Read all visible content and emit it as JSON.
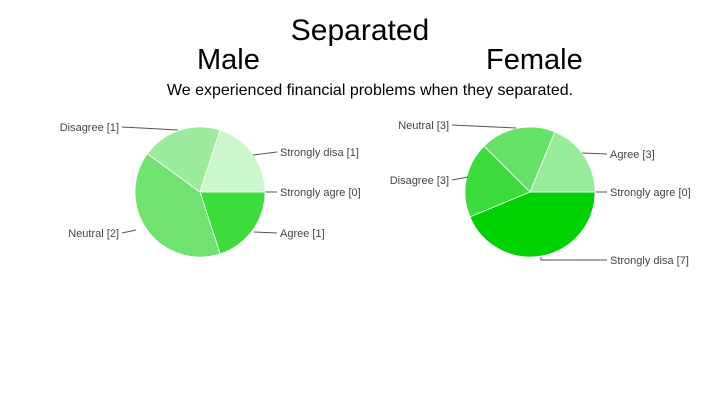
{
  "slide": {
    "title": "Separated",
    "male_heading": "Male",
    "female_heading": "Female",
    "question": "We experienced financial problems when they separated."
  },
  "chart_data": [
    {
      "type": "pie",
      "group": "Male",
      "slices": [
        {
          "label": "Strongly agre [0]",
          "value": 0,
          "color": "#2ca02c"
        },
        {
          "label": "Agree [1]",
          "value": 1,
          "color": "#3bdc3b"
        },
        {
          "label": "Neutral [2]",
          "value": 2,
          "color": "#6fe26f"
        },
        {
          "label": "Disagree [1]",
          "value": 1,
          "color": "#9ceb9c"
        },
        {
          "label": "Strongly disa [1]",
          "value": 1,
          "color": "#ccf6cc"
        }
      ]
    },
    {
      "type": "pie",
      "group": "Female",
      "slices": [
        {
          "label": "Strongly agre [0]",
          "value": 0,
          "color": "#2ca02c"
        },
        {
          "label": "Strongly disa [7]",
          "value": 7,
          "color": "#00d100"
        },
        {
          "label": "Disagree [3]",
          "value": 3,
          "color": "#3ddc3d"
        },
        {
          "label": "Neutral [3]",
          "value": 3,
          "color": "#66e366"
        },
        {
          "label": "Agree [3]",
          "value": 3,
          "color": "#98eb98"
        }
      ]
    }
  ]
}
